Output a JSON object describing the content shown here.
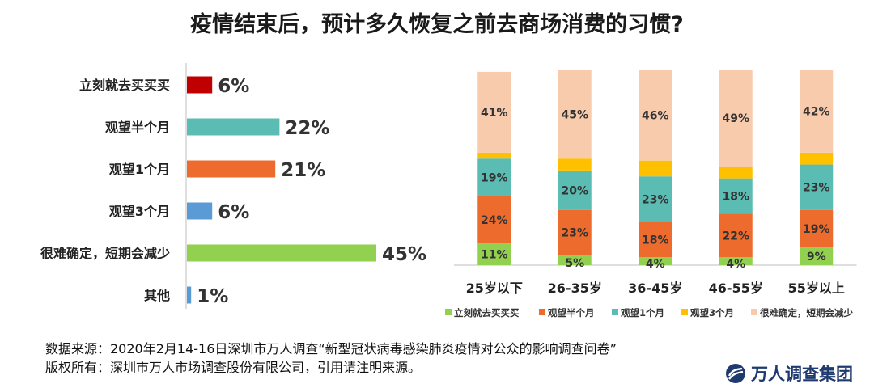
{
  "title": "疫情结束后，预计多久恢复之前去商场消费的习惯?",
  "chart_data": [
    {
      "type": "bar",
      "orientation": "horizontal",
      "categories": [
        "立刻就去买买买",
        "观望半个月",
        "观望1个月",
        "观望3个月",
        "很难确定，短期会减少",
        "其他"
      ],
      "values": [
        6,
        22,
        21,
        6,
        45,
        1
      ],
      "value_labels": [
        "6%",
        "22%",
        "21%",
        "6%",
        "45%",
        "1%"
      ],
      "colors": [
        "#c00000",
        "#5bbcb4",
        "#ed6b2c",
        "#5b9bd5",
        "#92d050",
        "#5b9bd5"
      ],
      "grid": false
    },
    {
      "type": "bar",
      "stacked": true,
      "categories": [
        "25岁以下",
        "26-35岁",
        "36-45岁",
        "46-55岁",
        "55岁以上"
      ],
      "series": [
        {
          "name": "立刻就去买买买",
          "color": "#92d050",
          "values": [
            11,
            5,
            4,
            4,
            9
          ],
          "labels": [
            "11%",
            "5%",
            "4%",
            "4%",
            "9%"
          ]
        },
        {
          "name": "观望半个月",
          "color": "#ed6b2c",
          "values": [
            24,
            23,
            18,
            22,
            19
          ],
          "labels": [
            "24%",
            "23%",
            "18%",
            "22%",
            "19%"
          ]
        },
        {
          "name": "观望1个月",
          "color": "#5bbcb4",
          "values": [
            19,
            20,
            23,
            18,
            23
          ],
          "labels": [
            "19%",
            "20%",
            "23%",
            "18%",
            "23%"
          ]
        },
        {
          "name": "观望3个月",
          "color": "#ffc000",
          "values": [
            3,
            6,
            8,
            6,
            6
          ],
          "labels": [
            "",
            "",
            "",
            "",
            ""
          ]
        },
        {
          "name": "很难确定，短期会减少",
          "color": "#f8cbad",
          "values": [
            41,
            45,
            46,
            49,
            42
          ],
          "labels": [
            "41%",
            "45%",
            "46%",
            "49%",
            "42%"
          ]
        }
      ],
      "ylim": [
        0,
        100
      ],
      "legend": "bottom",
      "grid": false
    }
  ],
  "footer": {
    "source": "数据来源：2020年2月14-16日深圳市万人调查“新型冠状病毒感染肺炎疫情对公众的影响调查问卷”",
    "copyright": "版权所有：深圳市万人市场调查股份有限公司，引用请注明来源。"
  },
  "logo": {
    "text": "万人调查集团",
    "color": "#1f3a6e"
  }
}
